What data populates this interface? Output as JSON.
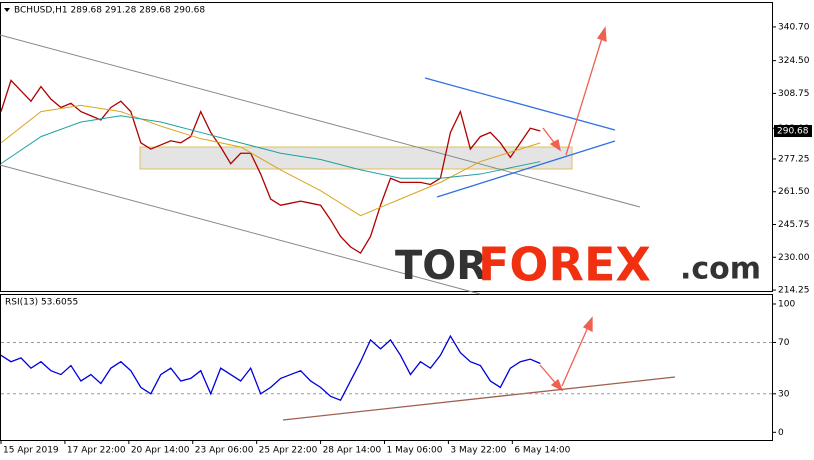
{
  "chart_data": [
    {
      "type": "line",
      "title": "BCHUSD,H1 289.68 291.28 289.68 290.68",
      "last_price": 290.68,
      "xlim": [
        0,
        772
      ],
      "ylim": [
        213.8,
        352.2
      ],
      "yticks": [
        {
          "value": 340.7,
          "label": "340.70"
        },
        {
          "value": 324.5,
          "label": "324.50"
        },
        308.75,
        {
          "value": 292,
          "label": "292.00"
        },
        277.25,
        {
          "value": 261.5,
          "label": "261.50"
        },
        245.75,
        {
          "value": 230,
          "label": "230.00"
        },
        214.25
      ],
      "series": [
        {
          "color": "#b00000",
          "x": [
            0,
            10,
            20,
            30,
            40,
            50,
            60,
            70,
            80,
            90,
            100,
            110,
            120,
            130,
            140,
            150,
            160,
            170,
            180,
            190,
            200,
            210,
            220,
            230,
            240,
            250,
            260,
            270,
            280,
            290,
            300,
            310,
            320,
            330,
            340,
            350,
            360,
            370,
            380,
            390,
            400,
            410,
            420,
            430,
            440,
            450,
            460,
            470,
            480,
            490,
            500,
            510,
            520,
            530,
            540
          ],
          "values": [
            300,
            315,
            310,
            305,
            312,
            306,
            302,
            304,
            300,
            298,
            296,
            302,
            305,
            300,
            285,
            282,
            284,
            286,
            285,
            288,
            300,
            290,
            283,
            275,
            280,
            280,
            270,
            258,
            255,
            256,
            257,
            256,
            255,
            248,
            240,
            235,
            232,
            240,
            255,
            268,
            266,
            266,
            266,
            265,
            268,
            290,
            300,
            282,
            288,
            290,
            285,
            278,
            285,
            292,
            290.68
          ]
        },
        {
          "color": "#d9a520",
          "x": [
            0,
            40,
            80,
            120,
            160,
            200,
            240,
            280,
            320,
            360,
            400,
            440,
            480,
            540
          ],
          "values": [
            285,
            300,
            303,
            300,
            293,
            287,
            283,
            272,
            262,
            250,
            258,
            266,
            276,
            285
          ]
        },
        {
          "color": "#20a0a0",
          "x": [
            0,
            40,
            80,
            120,
            160,
            200,
            240,
            280,
            320,
            360,
            400,
            440,
            480,
            540
          ],
          "values": [
            275,
            288,
            295,
            298,
            295,
            290,
            285,
            280,
            277,
            272,
            268,
            268,
            270,
            276
          ]
        }
      ],
      "logo": [
        "TOR",
        "FOREX",
        ".com"
      ]
    },
    {
      "type": "line",
      "title": "RSI(13) 53.6055",
      "xlim": [
        0,
        772
      ],
      "ylim": [
        -6,
        107
      ],
      "yticks": [
        100,
        70,
        30,
        0
      ],
      "levels": [
        70,
        30
      ],
      "xticks": [
        {
          "value": 0,
          "label": "15 Apr 2019"
        },
        {
          "value": 64,
          "label": "17 Apr 22:00"
        },
        {
          "value": 128,
          "label": "20 Apr 14:00"
        },
        {
          "value": 192,
          "label": "23 Apr 06:00"
        },
        {
          "value": 256,
          "label": "25 Apr 22:00"
        },
        {
          "value": 320,
          "label": "28 Apr 14:00"
        },
        {
          "value": 384,
          "label": "1 May 06:00"
        },
        {
          "value": 448,
          "label": "3 May 22:00"
        },
        {
          "value": 512,
          "label": "6 May 14:00"
        }
      ],
      "series": [
        {
          "color": "#0000dd",
          "x": [
            0,
            10,
            20,
            30,
            40,
            50,
            60,
            70,
            80,
            90,
            100,
            110,
            120,
            130,
            140,
            150,
            160,
            170,
            180,
            190,
            200,
            210,
            220,
            230,
            240,
            250,
            260,
            270,
            280,
            290,
            300,
            310,
            320,
            330,
            340,
            350,
            360,
            370,
            380,
            390,
            400,
            410,
            420,
            430,
            440,
            450,
            460,
            470,
            480,
            490,
            500,
            510,
            520,
            530,
            540
          ],
          "values": [
            60,
            55,
            58,
            50,
            55,
            48,
            45,
            52,
            40,
            45,
            38,
            50,
            55,
            48,
            35,
            30,
            45,
            50,
            40,
            42,
            48,
            30,
            50,
            45,
            40,
            50,
            30,
            35,
            42,
            45,
            48,
            40,
            35,
            28,
            25,
            40,
            55,
            72,
            65,
            72,
            60,
            45,
            55,
            50,
            60,
            75,
            62,
            55,
            52,
            40,
            35,
            50,
            55,
            57,
            53.6055
          ]
        }
      ]
    }
  ]
}
